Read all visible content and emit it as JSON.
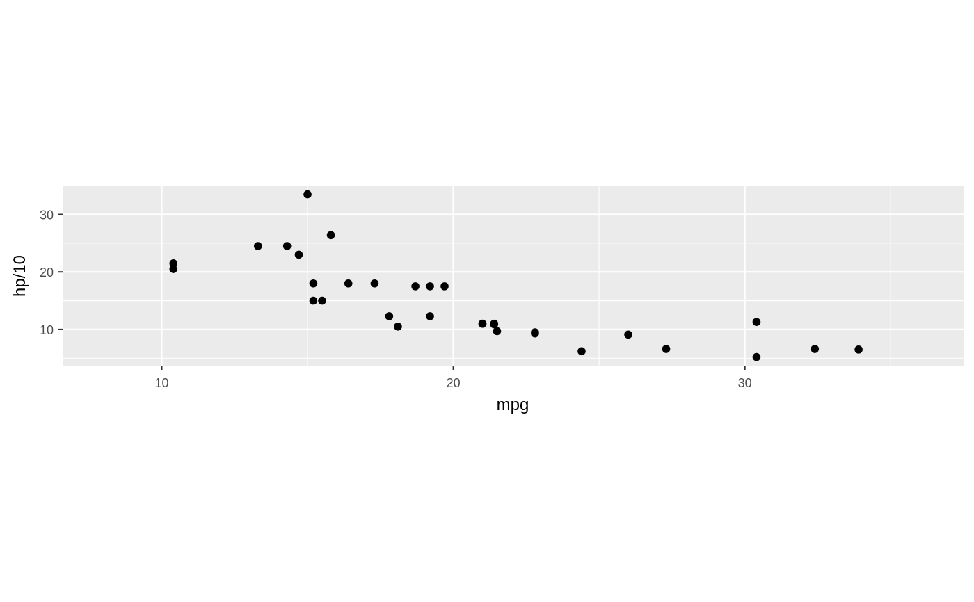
{
  "chart_data": {
    "type": "scatter",
    "title": "",
    "xlabel": "mpg",
    "ylabel": "hp/10",
    "xlim": [
      6.6,
      37.5
    ],
    "ylim": [
      3.7,
      34.9
    ],
    "x_ticks": [
      10,
      20,
      30
    ],
    "y_ticks": [
      10,
      20,
      30
    ],
    "x_tick_labels": [
      "10",
      "20",
      "30"
    ],
    "y_tick_labels": [
      "10",
      "20",
      "30"
    ],
    "grid": true,
    "legend": "none",
    "colors": {
      "panel_background": "#ebebeb",
      "grid_major": "#ffffff",
      "point": "#000000",
      "tick_label": "#4d4d4d",
      "axis_title": "#000000",
      "tick_mark": "#333333"
    },
    "series": [
      {
        "points": [
          {
            "x": 21.0,
            "y": 11.0
          },
          {
            "x": 21.0,
            "y": 11.0
          },
          {
            "x": 22.8,
            "y": 9.3
          },
          {
            "x": 21.4,
            "y": 11.0
          },
          {
            "x": 18.7,
            "y": 17.5
          },
          {
            "x": 18.1,
            "y": 10.5
          },
          {
            "x": 14.3,
            "y": 24.5
          },
          {
            "x": 24.4,
            "y": 6.2
          },
          {
            "x": 22.8,
            "y": 9.5
          },
          {
            "x": 19.2,
            "y": 12.3
          },
          {
            "x": 17.8,
            "y": 12.3
          },
          {
            "x": 16.4,
            "y": 18.0
          },
          {
            "x": 17.3,
            "y": 18.0
          },
          {
            "x": 15.2,
            "y": 18.0
          },
          {
            "x": 10.4,
            "y": 20.5
          },
          {
            "x": 10.4,
            "y": 21.5
          },
          {
            "x": 14.7,
            "y": 23.0
          },
          {
            "x": 32.4,
            "y": 6.6
          },
          {
            "x": 30.4,
            "y": 5.2
          },
          {
            "x": 33.9,
            "y": 6.5
          },
          {
            "x": 21.5,
            "y": 9.7
          },
          {
            "x": 15.5,
            "y": 15.0
          },
          {
            "x": 15.2,
            "y": 15.0
          },
          {
            "x": 13.3,
            "y": 24.5
          },
          {
            "x": 19.2,
            "y": 17.5
          },
          {
            "x": 27.3,
            "y": 6.6
          },
          {
            "x": 26.0,
            "y": 9.1
          },
          {
            "x": 30.4,
            "y": 11.3
          },
          {
            "x": 15.8,
            "y": 26.4
          },
          {
            "x": 19.7,
            "y": 17.5
          },
          {
            "x": 15.0,
            "y": 33.5
          },
          {
            "x": 21.4,
            "y": 10.9
          }
        ]
      }
    ]
  }
}
